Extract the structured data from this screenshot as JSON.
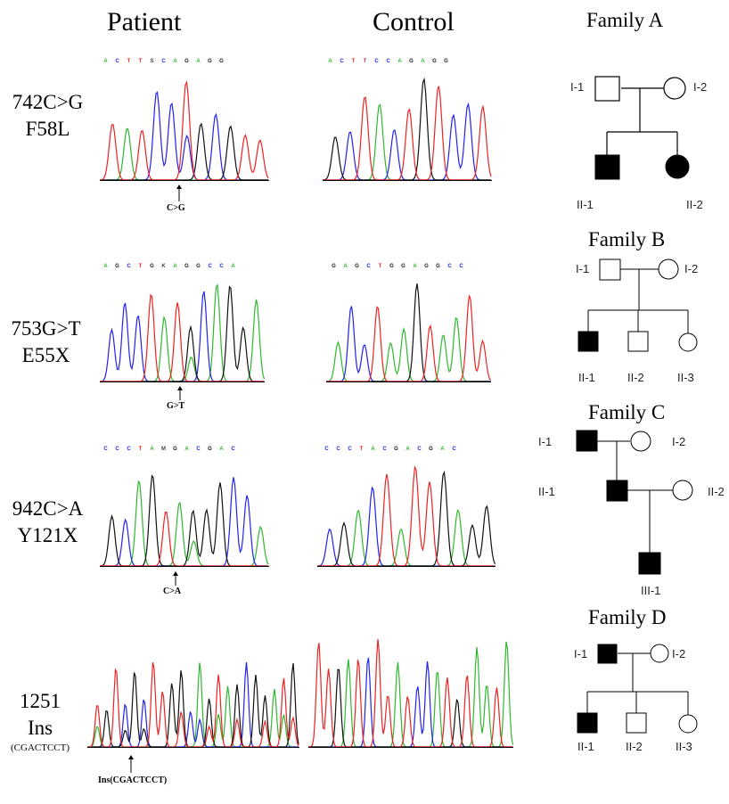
{
  "headers": {
    "patient": "Patient",
    "control": "Control"
  },
  "colors": {
    "A": "#2fb82f",
    "C": "#2222ee",
    "G": "#111111",
    "T": "#ee2222",
    "N": "#444444"
  },
  "mutations": [
    {
      "label": "742C>G",
      "protein": "F58L",
      "annotation": "C>G",
      "patient_seq": [
        "A",
        "C",
        "T",
        "T",
        "S",
        "C",
        "A",
        "G",
        "A",
        "G",
        "G"
      ],
      "control_seq": [
        "A",
        "C",
        "T",
        "T",
        "C",
        "C",
        "A",
        "G",
        "A",
        "G",
        "G"
      ]
    },
    {
      "label": "753G>T",
      "protein": "E55X",
      "annotation": "G>T",
      "patient_seq": [
        "A",
        "G",
        "C",
        "T",
        "G",
        "K",
        "A",
        "G",
        "G",
        "C",
        "C",
        "A"
      ],
      "control_seq": [
        "G",
        "A",
        "G",
        "C",
        "T",
        "G",
        "G",
        "A",
        "G",
        "G",
        "C",
        "C"
      ]
    },
    {
      "label": "942C>A",
      "protein": "Y121X",
      "annotation": "C>A",
      "patient_seq": [
        "C",
        "C",
        "C",
        "T",
        "A",
        "M",
        "G",
        "A",
        "C",
        "G",
        "A",
        "C"
      ],
      "control_seq": [
        "C",
        "C",
        "C",
        "T",
        "A",
        "C",
        "G",
        "A",
        "C",
        "G",
        "A",
        "C"
      ]
    },
    {
      "label": "1251",
      "protein": "Ins",
      "insert": "(CGACTCCT)",
      "annotation": "Ins(CGACTCCT)",
      "patient_seq": [],
      "control_seq": []
    }
  ],
  "families": [
    {
      "title": "Family A",
      "members": [
        "I-1",
        "I-2",
        "II-1",
        "II-2"
      ]
    },
    {
      "title": "Family B",
      "members": [
        "I-1",
        "I-2",
        "II-1",
        "II-2",
        "II-3"
      ]
    },
    {
      "title": "Family C",
      "members": [
        "I-1",
        "I-2",
        "II-1",
        "II-2",
        "III-1"
      ]
    },
    {
      "title": "Family D",
      "members": [
        "I-1",
        "I-2",
        "II-1",
        "II-2",
        "II-3"
      ]
    }
  ]
}
